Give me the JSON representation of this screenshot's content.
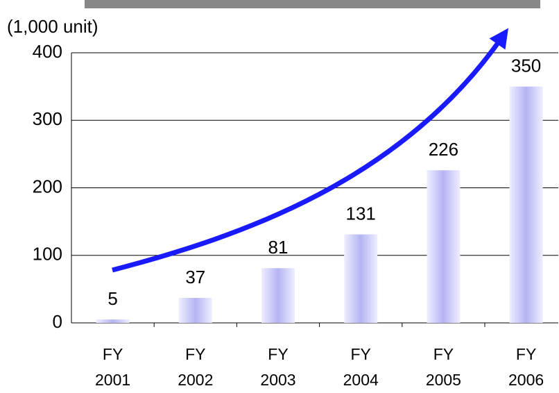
{
  "chart_data": {
    "type": "bar",
    "y_label": "(1,000 unit)",
    "categories": [
      "FY 2001",
      "FY 2002",
      "FY 2003",
      "FY 2004",
      "FY 2005",
      "FY 2006"
    ],
    "values": [
      5,
      37,
      81,
      131,
      226,
      350
    ],
    "color": "#b4b4f4",
    "ylim": [
      0,
      400
    ],
    "yticks": [
      0,
      100,
      200,
      300,
      400
    ],
    "grid": true
  }
}
